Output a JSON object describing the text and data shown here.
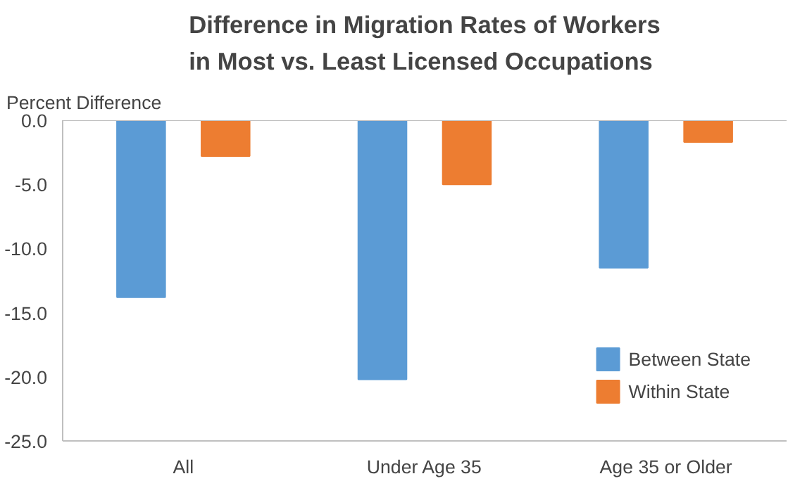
{
  "chart_data": {
    "type": "bar",
    "title": "Difference in Migration Rates of Workers\nin Most vs. Least Licensed Occupations",
    "ylabel": "Percent Difference",
    "categories": [
      "All",
      "Under Age 35",
      "Age 35 or Older"
    ],
    "series": [
      {
        "name": "Between State",
        "color": "#5b9bd5",
        "values": [
          -13.8,
          -20.2,
          -11.5
        ]
      },
      {
        "name": "Within State",
        "color": "#ed7d31",
        "values": [
          -2.8,
          -5.0,
          -1.7
        ]
      }
    ],
    "ylim": [
      -25,
      0
    ],
    "yticks": [
      {
        "value": 0,
        "label": "0.0"
      },
      {
        "value": -5,
        "label": "-5.0"
      },
      {
        "value": -10,
        "label": "-10.0"
      },
      {
        "value": -15,
        "label": "-15.0"
      },
      {
        "value": -20,
        "label": "-20.0"
      },
      {
        "value": -25,
        "label": "-25.0"
      }
    ],
    "grid": false,
    "legend": "bottom right"
  }
}
